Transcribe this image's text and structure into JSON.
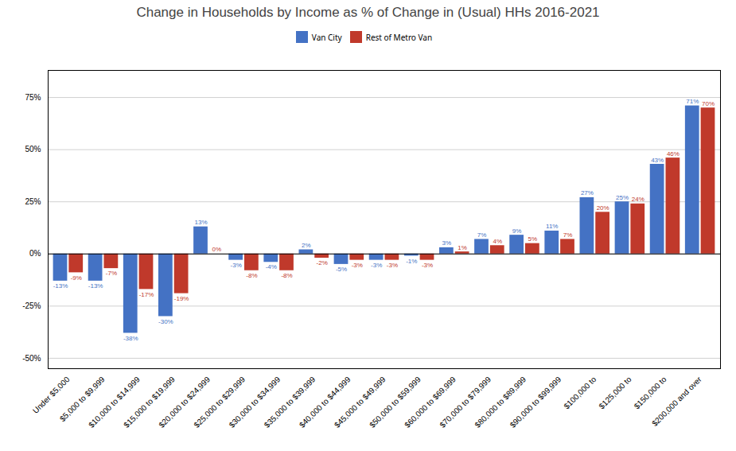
{
  "chart_data": {
    "type": "bar",
    "title": "Change in Households by Income as % of Change in (Usual) HHs 2016-2021",
    "categories": [
      "Under $5,000",
      "$5,000 to $9,999",
      "$10,000 to $14,999",
      "$15,000 to $19,999",
      "$20,000 to $24,999",
      "$25,000 to $29,999",
      "$30,000 to $34,999",
      "$35,000 to $39,999",
      "$40,000 to $44,999",
      "$45,000 to $49,999",
      "$50,000 to $59,999",
      "$60,000 to $69,999",
      "$70,000 to $79,999",
      "$80,000 to $89,999",
      "$90,000 to $99,999",
      "$100,000 to",
      "$125,000 to",
      "$150,000 to",
      "$200,000 and over"
    ],
    "series": [
      {
        "name": "Van City",
        "color": "#4472c4",
        "values": [
          -13,
          -13,
          -38,
          -30,
          13,
          -3,
          -4,
          2,
          -5,
          -3,
          -1,
          3,
          7,
          9,
          11,
          27,
          25,
          43,
          71
        ],
        "value_labels": [
          "-13%",
          "-13%",
          "-38%",
          "-30%",
          "13%",
          "-3%",
          "-4%",
          "2%",
          "-5%",
          "-3%",
          "-1%",
          "3%",
          "7%",
          "9%",
          "11%",
          "27%",
          "25%",
          "43%",
          "71%"
        ]
      },
      {
        "name": "Rest of Metro Van",
        "color": "#c0392b",
        "values": [
          -9,
          -7,
          -17,
          -19,
          0,
          -8,
          -8,
          -2,
          -3,
          -3,
          -3,
          1,
          4,
          5,
          7,
          20,
          24,
          46,
          70
        ],
        "value_labels": [
          "-9%",
          "-7%",
          "-17%",
          "-19%",
          "0%",
          "-8%",
          "-8%",
          "-2%",
          "-3%",
          "-3%",
          "-3%",
          "1%",
          "4%",
          "5%",
          "7%",
          "20%",
          "24%",
          "46%",
          "70%"
        ]
      }
    ],
    "ylim": [
      -55,
      88
    ],
    "yticks": [
      {
        "value": -50,
        "label": "-50%"
      },
      {
        "value": -25,
        "label": "-25%"
      },
      {
        "value": 0,
        "label": "0%"
      },
      {
        "value": 25,
        "label": "25%"
      },
      {
        "value": 50,
        "label": "50%"
      },
      {
        "value": 75,
        "label": "75%"
      }
    ],
    "grid": true,
    "legend": "top",
    "data_labels": true
  }
}
